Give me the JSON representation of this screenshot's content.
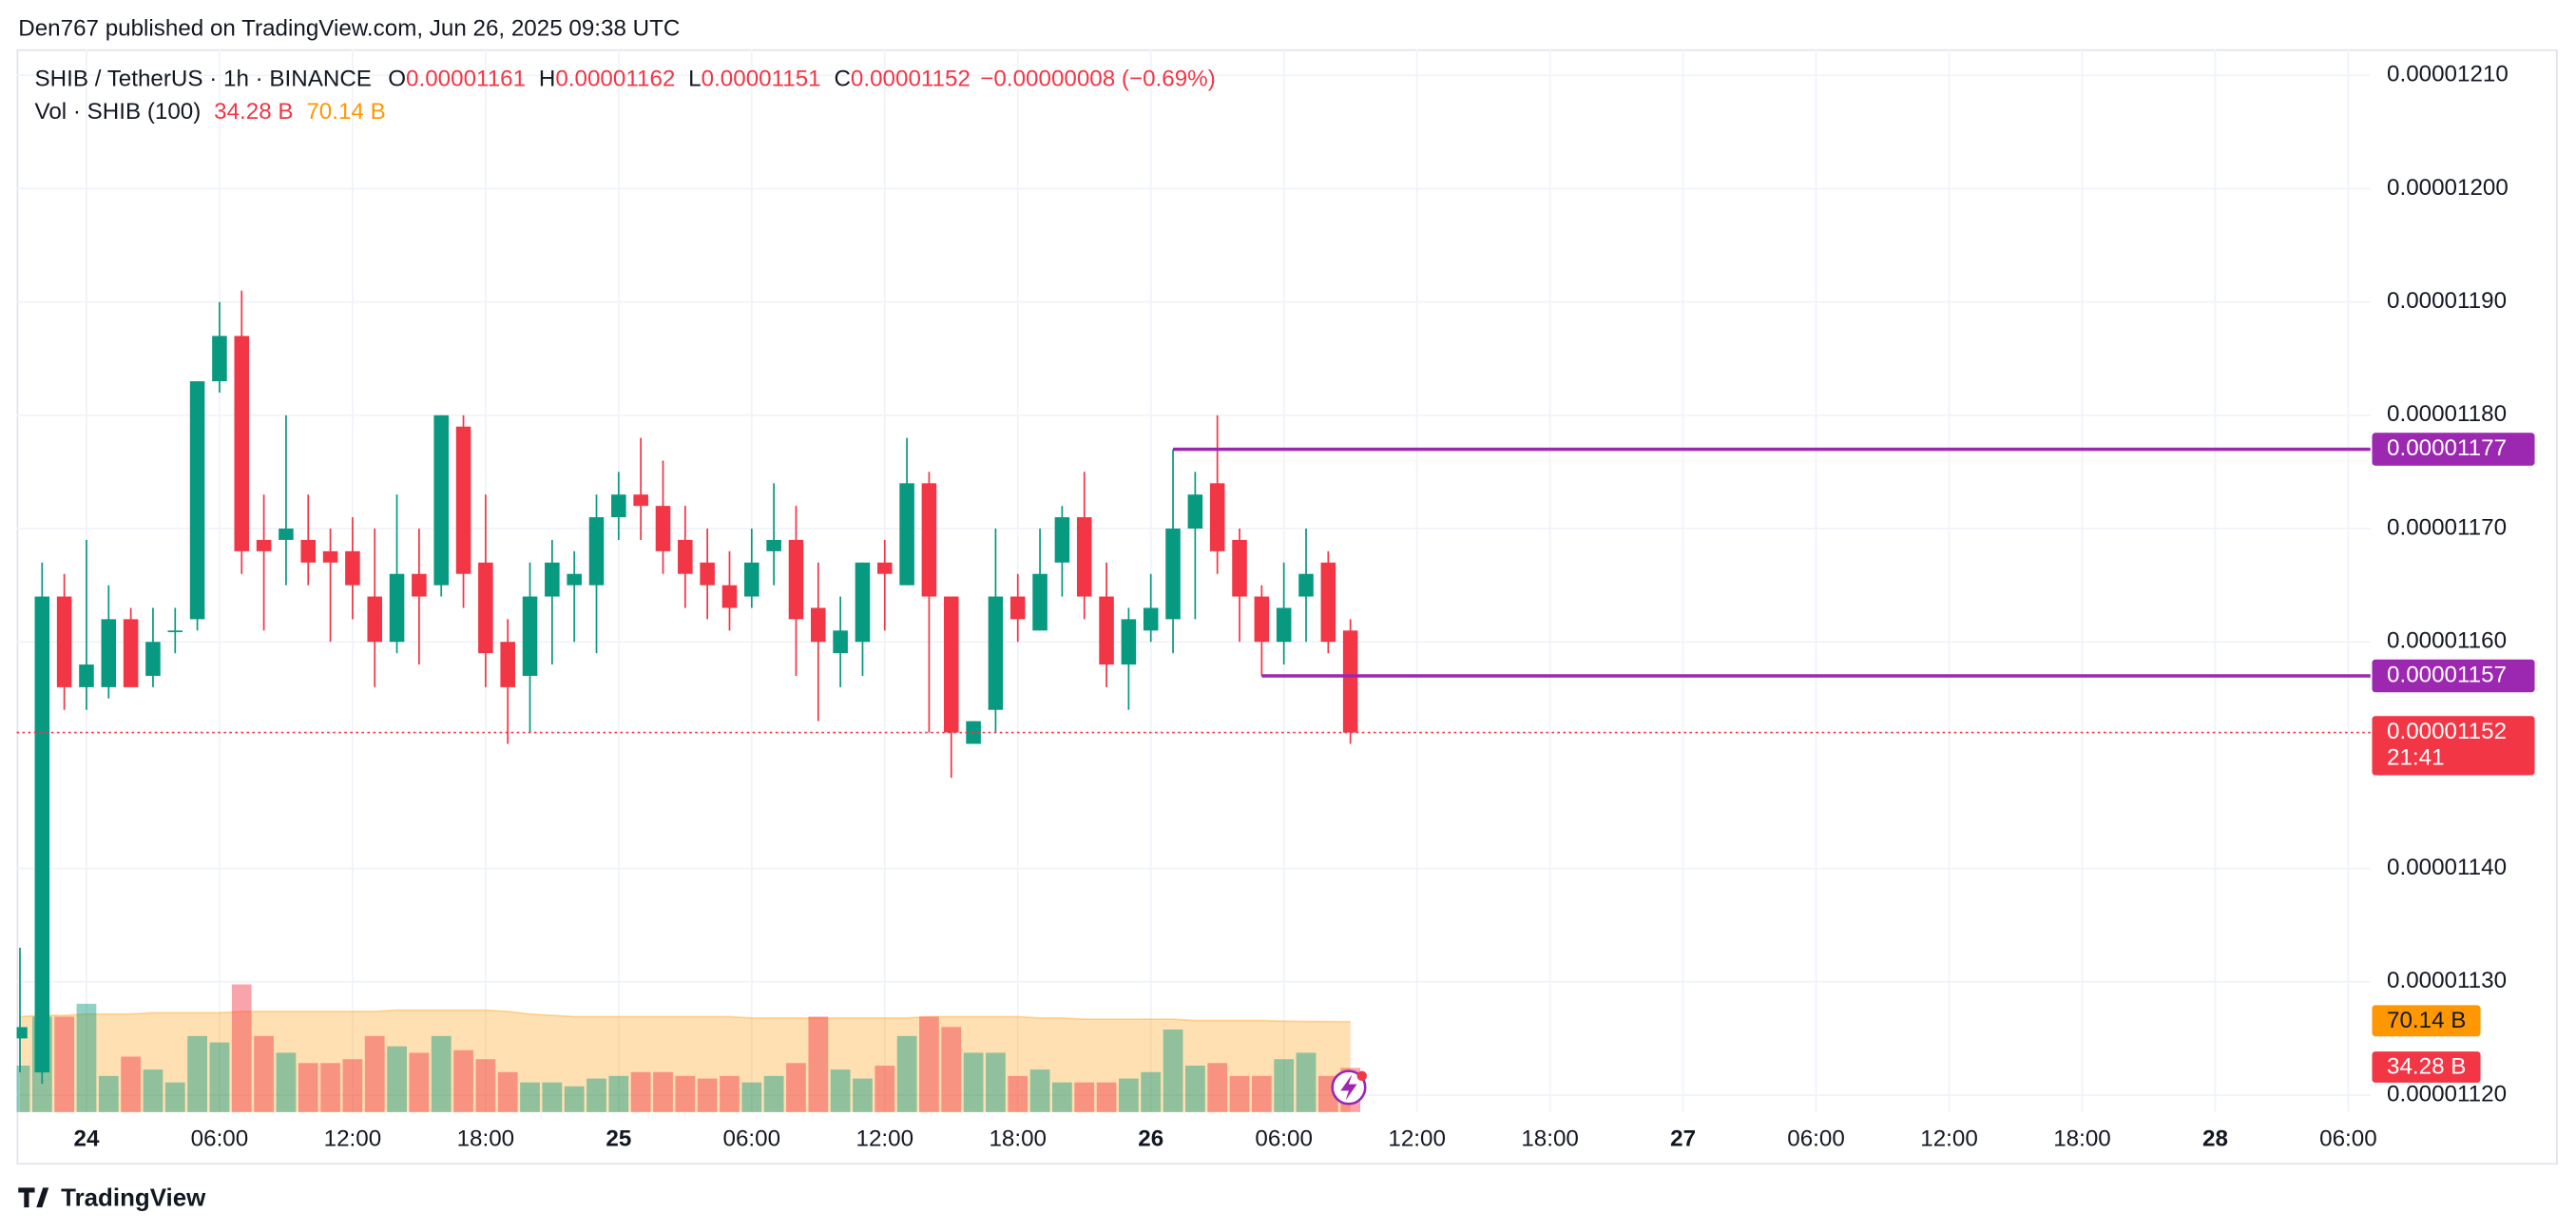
{
  "header": {
    "publisher": "Den767 published on TradingView.com, Jun 26, 2025 09:38 UTC",
    "brand": "TradingView"
  },
  "chart_data": {
    "type": "candlestick",
    "symbol": "SHIB / TetherUS · 1h · BINANCE",
    "quote": [
      {
        "key": "O",
        "value": "0.00001161"
      },
      {
        "key": "H",
        "value": "0.00001162"
      },
      {
        "key": "L",
        "value": "0.00001151"
      },
      {
        "key": "C",
        "value": "0.00001152"
      }
    ],
    "change": "−0.00000008 (−0.69%)",
    "volume_title": "Vol · SHIB (100)",
    "volume_label": "34.28 B",
    "volume_ma_label": "70.14 B",
    "categories": [
      null,
      null,
      null,
      "24",
      null,
      null,
      null,
      null,
      null,
      "06:00",
      null,
      null,
      null,
      null,
      null,
      "12:00",
      null,
      null,
      null,
      null,
      null,
      "18:00",
      null,
      null,
      null,
      null,
      null,
      "25",
      null,
      null,
      null,
      null,
      null,
      "06:00",
      null,
      null,
      null,
      null,
      null,
      "12:00",
      null,
      null,
      null,
      null,
      null,
      "18:00",
      null,
      null,
      null,
      null,
      null,
      "26",
      null,
      null,
      null,
      null,
      null,
      "06:00",
      null,
      null,
      null,
      null,
      null,
      "12:00",
      null,
      null,
      null,
      null,
      null,
      "18:00",
      null,
      null,
      null,
      null,
      null,
      "27",
      null,
      null,
      null,
      null,
      null,
      "06:00",
      null,
      null,
      null,
      null,
      null,
      "12:00",
      null,
      null,
      null,
      null,
      null,
      "18:00",
      null,
      null,
      null,
      null,
      null,
      "28",
      null,
      null,
      null,
      null,
      null,
      "06:00",
      null
    ],
    "open": [
      1.125e-05,
      1.122e-05,
      1.164e-05,
      1.156e-05,
      1.156e-05,
      1.162e-05,
      1.157e-05,
      1.161e-05,
      1.162e-05,
      1.183e-05,
      1.187e-05,
      1.169e-05,
      1.169e-05,
      1.169e-05,
      1.168e-05,
      1.168e-05,
      1.164e-05,
      1.16e-05,
      1.166e-05,
      1.165e-05,
      1.179e-05,
      1.167e-05,
      1.16e-05,
      1.157e-05,
      1.164e-05,
      1.165e-05,
      1.165e-05,
      1.171e-05,
      1.173e-05,
      1.172e-05,
      1.169e-05,
      1.167e-05,
      1.165e-05,
      1.164e-05,
      1.168e-05,
      1.169e-05,
      1.163e-05,
      1.159e-05,
      1.16e-05,
      1.167e-05,
      1.165e-05,
      1.174e-05,
      1.164e-05,
      1.151e-05,
      1.154e-05,
      1.164e-05,
      1.161e-05,
      1.167e-05,
      1.171e-05,
      1.164e-05,
      1.158e-05,
      1.161e-05,
      1.162e-05,
      1.17e-05,
      1.174e-05,
      1.169e-05,
      1.164e-05,
      1.16e-05,
      1.164e-05,
      1.167e-05,
      1.161e-05,
      null,
      null,
      null,
      null,
      null,
      null,
      null,
      null,
      null,
      null,
      null,
      null,
      null,
      null,
      null,
      null,
      null,
      null,
      null,
      null,
      null,
      null,
      null,
      null,
      null,
      null,
      null,
      null,
      null,
      null,
      null,
      null,
      null,
      null,
      null,
      null,
      null,
      null,
      null,
      null,
      null,
      null,
      null,
      null,
      null,
      null
    ],
    "high": [
      1.133e-05,
      1.167e-05,
      1.166e-05,
      1.169e-05,
      1.165e-05,
      1.163e-05,
      1.163e-05,
      1.163e-05,
      1.183e-05,
      1.19e-05,
      1.191e-05,
      1.173e-05,
      1.18e-05,
      1.173e-05,
      1.17e-05,
      1.171e-05,
      1.17e-05,
      1.173e-05,
      1.17e-05,
      1.18e-05,
      1.18e-05,
      1.173e-05,
      1.162e-05,
      1.167e-05,
      1.169e-05,
      1.168e-05,
      1.173e-05,
      1.175e-05,
      1.178e-05,
      1.176e-05,
      1.172e-05,
      1.17e-05,
      1.168e-05,
      1.17e-05,
      1.174e-05,
      1.172e-05,
      1.167e-05,
      1.164e-05,
      1.167e-05,
      1.169e-05,
      1.178e-05,
      1.175e-05,
      1.164e-05,
      1.153e-05,
      1.17e-05,
      1.166e-05,
      1.17e-05,
      1.172e-05,
      1.175e-05,
      1.167e-05,
      1.163e-05,
      1.166e-05,
      1.177e-05,
      1.175e-05,
      1.18e-05,
      1.17e-05,
      1.165e-05,
      1.167e-05,
      1.17e-05,
      1.168e-05,
      1.162e-05,
      null,
      null,
      null,
      null,
      null,
      null,
      null,
      null,
      null,
      null,
      null,
      null,
      null,
      null,
      null,
      null,
      null,
      null,
      null,
      null,
      null,
      null,
      null,
      null,
      null,
      null,
      null,
      null,
      null,
      null,
      null,
      null,
      null,
      null,
      null,
      null,
      null,
      null,
      null,
      null,
      null,
      null,
      null,
      null,
      null,
      null
    ],
    "low": [
      1.122e-05,
      1.121e-05,
      1.154e-05,
      1.154e-05,
      1.155e-05,
      1.156e-05,
      1.156e-05,
      1.159e-05,
      1.161e-05,
      1.182e-05,
      1.166e-05,
      1.161e-05,
      1.165e-05,
      1.165e-05,
      1.16e-05,
      1.162e-05,
      1.156e-05,
      1.159e-05,
      1.158e-05,
      1.164e-05,
      1.163e-05,
      1.156e-05,
      1.151e-05,
      1.152e-05,
      1.158e-05,
      1.16e-05,
      1.159e-05,
      1.169e-05,
      1.169e-05,
      1.166e-05,
      1.163e-05,
      1.162e-05,
      1.161e-05,
      1.163e-05,
      1.165e-05,
      1.157e-05,
      1.153e-05,
      1.156e-05,
      1.157e-05,
      1.161e-05,
      1.165e-05,
      1.152e-05,
      1.148e-05,
      1.151e-05,
      1.152e-05,
      1.16e-05,
      1.161e-05,
      1.164e-05,
      1.162e-05,
      1.156e-05,
      1.154e-05,
      1.16e-05,
      1.159e-05,
      1.162e-05,
      1.166e-05,
      1.16e-05,
      1.157e-05,
      1.158e-05,
      1.16e-05,
      1.159e-05,
      1.151e-05,
      null,
      null,
      null,
      null,
      null,
      null,
      null,
      null,
      null,
      null,
      null,
      null,
      null,
      null,
      null,
      null,
      null,
      null,
      null,
      null,
      null,
      null,
      null,
      null,
      null,
      null,
      null,
      null,
      null,
      null,
      null,
      null,
      null,
      null,
      null,
      null,
      null,
      null,
      null,
      null,
      null,
      null,
      null,
      null,
      null,
      null
    ],
    "close": [
      1.126e-05,
      1.164e-05,
      1.156e-05,
      1.158e-05,
      1.162e-05,
      1.156e-05,
      1.16e-05,
      1.161e-05,
      1.183e-05,
      1.187e-05,
      1.168e-05,
      1.168e-05,
      1.17e-05,
      1.167e-05,
      1.167e-05,
      1.165e-05,
      1.16e-05,
      1.166e-05,
      1.164e-05,
      1.18e-05,
      1.166e-05,
      1.159e-05,
      1.156e-05,
      1.164e-05,
      1.167e-05,
      1.166e-05,
      1.171e-05,
      1.173e-05,
      1.172e-05,
      1.168e-05,
      1.166e-05,
      1.165e-05,
      1.163e-05,
      1.167e-05,
      1.169e-05,
      1.162e-05,
      1.16e-05,
      1.161e-05,
      1.167e-05,
      1.166e-05,
      1.174e-05,
      1.164e-05,
      1.152e-05,
      1.153e-05,
      1.164e-05,
      1.162e-05,
      1.166e-05,
      1.171e-05,
      1.164e-05,
      1.158e-05,
      1.162e-05,
      1.163e-05,
      1.17e-05,
      1.173e-05,
      1.168e-05,
      1.164e-05,
      1.16e-05,
      1.163e-05,
      1.166e-05,
      1.16e-05,
      1.152e-05,
      null,
      null,
      null,
      null,
      null,
      null,
      null,
      null,
      null,
      null,
      null,
      null,
      null,
      null,
      null,
      null,
      null,
      null,
      null,
      null,
      null,
      null,
      null,
      null,
      null,
      null,
      null,
      null,
      null,
      null,
      null,
      null,
      null,
      null,
      null,
      null,
      null,
      null,
      null,
      null,
      null,
      null,
      null,
      null,
      null,
      null
    ],
    "volume": [
      36,
      74,
      74,
      84,
      28,
      43,
      33,
      23,
      59,
      54,
      99,
      59,
      46,
      38,
      38,
      41,
      59,
      51,
      46,
      59,
      48,
      41,
      31,
      23,
      23,
      20,
      26,
      28,
      31,
      31,
      28,
      26,
      28,
      23,
      28,
      38,
      74,
      33,
      26,
      36,
      59,
      74,
      66,
      46,
      46,
      28,
      33,
      23,
      23,
      23,
      26,
      31,
      64,
      36,
      38,
      28,
      28,
      41,
      46,
      28,
      34.28,
      null,
      null,
      null,
      null,
      null,
      null,
      null,
      null,
      null,
      null,
      null,
      null,
      null,
      null,
      null,
      null,
      null,
      null,
      null,
      null,
      null,
      null,
      null,
      null,
      null,
      null,
      null,
      null,
      null,
      null,
      null,
      null,
      null,
      null,
      null,
      null,
      null,
      null,
      null,
      null,
      null,
      null,
      null,
      null,
      null,
      null
    ],
    "volume_ma": [
      74,
      75,
      75,
      76,
      76,
      76,
      77,
      77,
      77,
      77,
      78,
      78,
      78,
      78,
      78,
      78,
      78,
      79,
      79,
      79,
      79,
      79,
      78,
      76,
      75,
      74,
      74,
      74,
      74,
      74,
      74,
      74,
      74,
      73,
      73,
      73,
      73,
      73,
      73,
      73,
      73,
      74,
      74,
      74,
      74,
      74,
      73,
      73,
      72,
      72,
      72,
      72,
      72,
      71,
      71,
      71,
      71,
      70.5,
      70.3,
      70.2,
      70.14,
      null,
      null,
      null,
      null,
      null,
      null,
      null,
      null,
      null,
      null,
      null,
      null,
      null,
      null,
      null,
      null,
      null,
      null,
      null,
      null,
      null,
      null,
      null,
      null,
      null,
      null,
      null,
      null,
      null,
      null,
      null,
      null,
      null,
      null,
      null,
      null,
      null,
      null,
      null,
      null,
      null,
      null,
      null,
      null,
      null,
      null
    ],
    "ylim": [
      1.1185e-05,
      1.2123e-05
    ],
    "yticks": [
      {
        "value": 1.12e-05,
        "label": "0.00001120"
      },
      {
        "value": 1.13e-05,
        "label": "0.00001130"
      },
      {
        "value": 1.14e-05,
        "label": "0.00001140"
      },
      {
        "value": 1.16e-05,
        "label": "0.00001160"
      },
      {
        "value": 1.17e-05,
        "label": "0.00001170"
      },
      {
        "value": 1.18e-05,
        "label": "0.00001180"
      },
      {
        "value": 1.19e-05,
        "label": "0.00001190"
      },
      {
        "value": 1.2e-05,
        "label": "0.00001200"
      },
      {
        "value": 1.21e-05,
        "label": "0.00001210"
      }
    ],
    "volume_ylim": [
      0,
      824
    ],
    "levels": [
      {
        "value": 1.177e-05,
        "label": "0.00001177"
      },
      {
        "value": 1.157e-05,
        "label": "0.00001157"
      }
    ],
    "last_price": {
      "value": 1.152e-05,
      "label": "0.00001152"
    },
    "countdown": "21:41",
    "grid": true,
    "colors": {
      "up": "#089981",
      "down": "#f23645",
      "level": "#9c27b0",
      "volume_ma": "#ff9800",
      "volume_up": "rgba(8,153,129,0.45)",
      "volume_down": "rgba(242,54,69,0.45)"
    }
  }
}
